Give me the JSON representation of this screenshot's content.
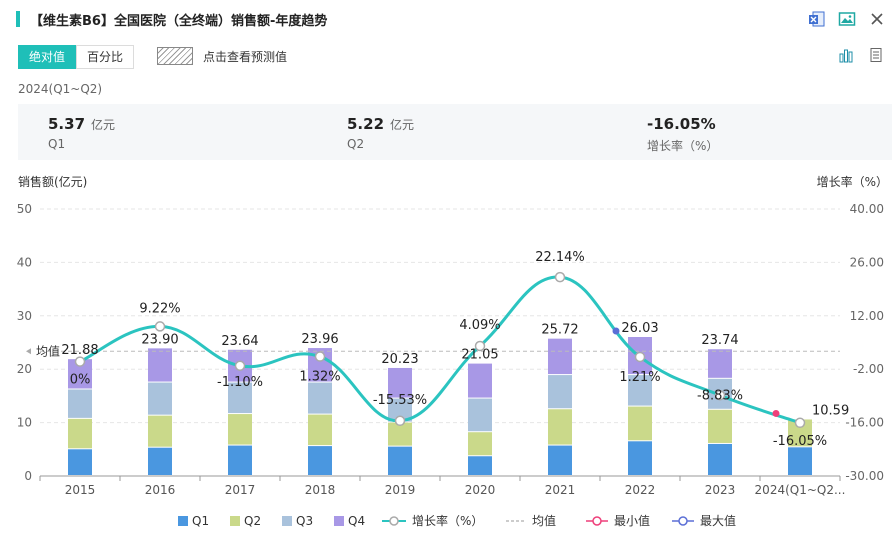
{
  "header": {
    "title": "【维生素B6】全国医院（全终端）销售额-年度趋势",
    "toggle_absolute": "绝对值",
    "toggle_percent": "百分比",
    "forecast_label": "点击查看预测值"
  },
  "period": "2024(Q1~Q2)",
  "stats": [
    {
      "value": "5.37",
      "unit": "亿元",
      "label": "Q1"
    },
    {
      "value": "5.22",
      "unit": "亿元",
      "label": "Q2"
    },
    {
      "value": "-16.05%",
      "unit": "",
      "label": "增长率（%）"
    }
  ],
  "colors": {
    "accent": "#1fbfb8",
    "q1": "#4a97e0",
    "q2": "#cad98a",
    "q3": "#a9c2dc",
    "q4": "#a898e6",
    "growth": "#2bc4c0",
    "min": "#ee3f7a",
    "max": "#5b6fd6"
  },
  "chart_data": {
    "type": "bar",
    "stacked": true,
    "categories": [
      "2015",
      "2016",
      "2017",
      "2018",
      "2019",
      "2020",
      "2021",
      "2022",
      "2023",
      "2024(Q1~Q2..."
    ],
    "series": [
      {
        "name": "Q1",
        "values": [
          5.0,
          5.3,
          5.7,
          5.6,
          5.5,
          3.7,
          5.7,
          6.5,
          6.0,
          5.37
        ]
      },
      {
        "name": "Q2",
        "values": [
          5.7,
          6.0,
          5.9,
          5.9,
          4.5,
          4.5,
          6.8,
          6.5,
          6.4,
          5.22
        ]
      },
      {
        "name": "Q3",
        "values": [
          5.5,
          6.2,
          5.9,
          6.0,
          4.5,
          6.3,
          6.4,
          5.9,
          5.8,
          0
        ]
      },
      {
        "name": "Q4",
        "values": [
          5.68,
          6.4,
          6.14,
          6.46,
          5.73,
          6.55,
          6.82,
          7.13,
          5.54,
          0
        ]
      }
    ],
    "totals": [
      "21.88",
      "23.90",
      "23.64",
      "23.96",
      "20.23",
      "21.05",
      "25.72",
      "26.03",
      "23.74",
      "10.59"
    ],
    "growth": {
      "name": "增长率（%）",
      "values": [
        0,
        9.22,
        -1.1,
        1.32,
        -15.53,
        4.09,
        22.14,
        1.21,
        -8.83,
        -16.05
      ],
      "labels": [
        "0%",
        "9.22%",
        "-1.10%",
        "1.32%",
        "-15.53%",
        "4.09%",
        "22.14%",
        "1.21%",
        "-8.83%",
        "-16.05%"
      ]
    },
    "mean_label": "均值",
    "min_index": 9,
    "max_index": 7,
    "ylabel_left": "销售额(亿元)",
    "ylabel_right": "增长率（%）",
    "ylim_left": [
      0,
      50
    ],
    "ylim_right": [
      -30,
      40
    ],
    "yticks_left": [
      "0",
      "10",
      "20",
      "30",
      "40",
      "50"
    ],
    "yticks_right": [
      "-30.00",
      "-16.00",
      "-2.00",
      "12.00",
      "26.00",
      "40.00"
    ],
    "legend": [
      "Q1",
      "Q2",
      "Q3",
      "Q4",
      "增长率（%）",
      "均值",
      "最小值",
      "最大值"
    ]
  }
}
